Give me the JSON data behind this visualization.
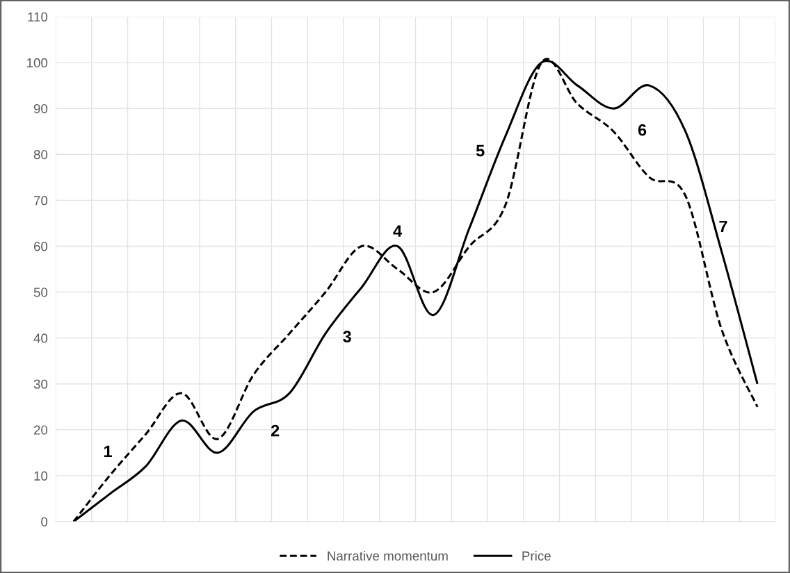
{
  "chart_data": {
    "type": "line",
    "categories": [
      null,
      null,
      null,
      null,
      null,
      null,
      null,
      null,
      null,
      null,
      null,
      null,
      null,
      null,
      null,
      null,
      null,
      null,
      null,
      null
    ],
    "series": [
      {
        "name": "Narrative momentum",
        "color": "#000000",
        "line_style": "dashed",
        "values": [
          0,
          10,
          19,
          28,
          18,
          32,
          41,
          50,
          60,
          55,
          50,
          60,
          69,
          100,
          91,
          85,
          75,
          71,
          42,
          25
        ]
      },
      {
        "name": "Price",
        "color": "#000000",
        "line_style": "solid",
        "values": [
          0,
          6,
          12,
          22,
          15,
          24,
          28,
          41,
          51,
          60,
          45,
          64,
          84,
          100,
          95,
          90,
          95,
          85,
          59,
          30
        ]
      }
    ],
    "ylim": [
      0,
      110
    ],
    "yticks": [
      0,
      10,
      20,
      30,
      40,
      50,
      60,
      70,
      80,
      90,
      100,
      110
    ],
    "grid": true,
    "legend": "bottom",
    "marker": "none",
    "annotations": [
      "1",
      "2",
      "3",
      "4",
      "5",
      "6",
      "7"
    ]
  }
}
